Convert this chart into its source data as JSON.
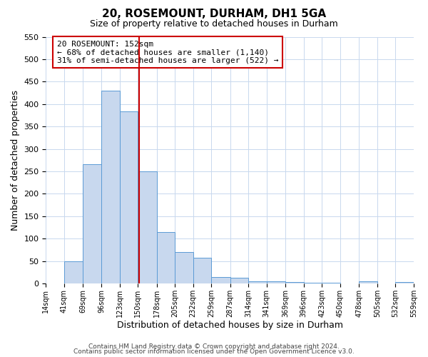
{
  "title": "20, ROSEMOUNT, DURHAM, DH1 5GA",
  "subtitle": "Size of property relative to detached houses in Durham",
  "xlabel": "Distribution of detached houses by size in Durham",
  "ylabel": "Number of detached properties",
  "bar_color": "#c8d8ee",
  "bar_edge_color": "#5b9bd5",
  "grid_color": "#c8d8ee",
  "background_color": "#ffffff",
  "vline_value": 152,
  "vline_color": "#cc0000",
  "annotation_title": "20 ROSEMOUNT: 152sqm",
  "annotation_line1": "← 68% of detached houses are smaller (1,140)",
  "annotation_line2": "31% of semi-detached houses are larger (522) →",
  "annotation_box_color": "#cc0000",
  "bin_edges": [
    14,
    41,
    69,
    96,
    123,
    150,
    178,
    205,
    232,
    259,
    287,
    314,
    341,
    369,
    396,
    423,
    450,
    478,
    505,
    532,
    559
  ],
  "bin_counts": [
    0,
    50,
    265,
    430,
    383,
    250,
    115,
    70,
    58,
    15,
    13,
    5,
    5,
    3,
    2,
    1,
    0,
    5,
    0,
    3
  ],
  "ylim": [
    0,
    550
  ],
  "yticks": [
    0,
    50,
    100,
    150,
    200,
    250,
    300,
    350,
    400,
    450,
    500,
    550
  ],
  "footer_line1": "Contains HM Land Registry data © Crown copyright and database right 2024.",
  "footer_line2": "Contains public sector information licensed under the Open Government Licence v3.0."
}
